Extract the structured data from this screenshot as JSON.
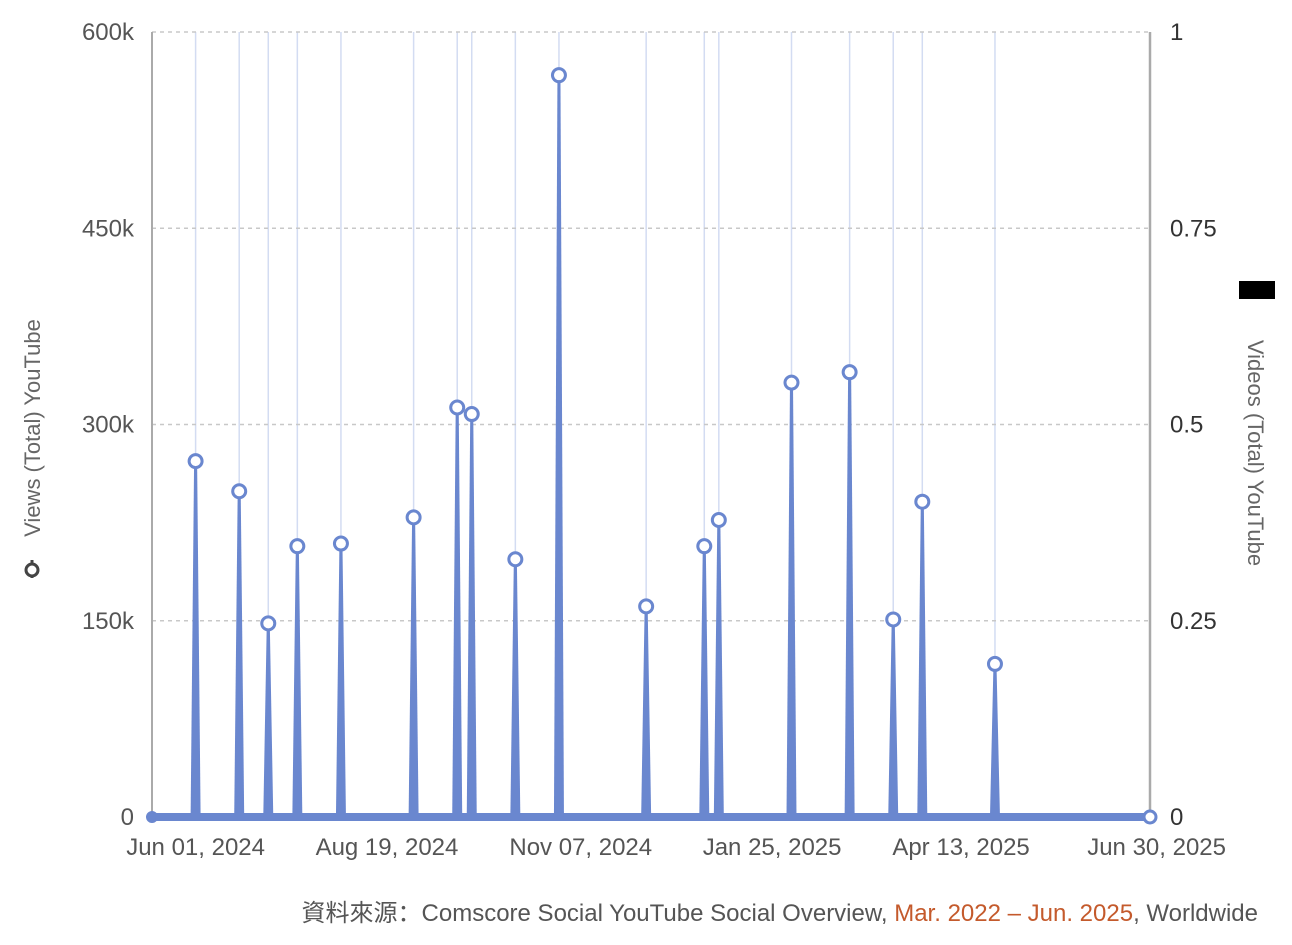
{
  "chart_data": {
    "type": "line",
    "subtype": "spike-line with circle markers, dual y-axis",
    "x": [
      "2024-05-14",
      "2024-06-01",
      "2024-06-13",
      "2024-06-25",
      "2024-07-13",
      "2024-08-12",
      "2024-08-30",
      "2024-09-05",
      "2024-09-22",
      "2024-10-10",
      "2024-11-15",
      "2024-12-09",
      "2024-12-15",
      "2025-01-13",
      "2025-02-05",
      "2025-02-23",
      "2025-03-03",
      "2025-03-28",
      "2025-04-08",
      "2025-05-07",
      "2025-06-30"
    ],
    "x_tick_labels": [
      "Jun 01, 2024",
      "Aug 19, 2024",
      "Nov 07, 2024",
      "Jan 25, 2025",
      "Apr 13, 2025",
      "Jun 30, 2025"
    ],
    "x_tick_dates": [
      "2024-06-01",
      "2024-08-19",
      "2024-11-07",
      "2025-01-25",
      "2025-04-13",
      "2025-06-30"
    ],
    "x_range": [
      "2024-05-14",
      "2025-06-30"
    ],
    "series": [
      {
        "name": "Views (Total) YouTube",
        "axis": "left",
        "color": "#6a87cf",
        "points": [
          {
            "x": "2024-05-14",
            "y": 0
          },
          {
            "x": "2024-06-01",
            "y": 272000
          },
          {
            "x": "2024-06-19",
            "y": 249000
          },
          {
            "x": "2024-07-01",
            "y": 148000
          },
          {
            "x": "2024-07-13",
            "y": 207000
          },
          {
            "x": "2024-07-31",
            "y": 209000
          },
          {
            "x": "2024-08-30",
            "y": 229000
          },
          {
            "x": "2024-09-17",
            "y": 313000
          },
          {
            "x": "2024-09-23",
            "y": 308000
          },
          {
            "x": "2024-10-11",
            "y": 197000
          },
          {
            "x": "2024-10-29",
            "y": 567000
          },
          {
            "x": "2024-12-04",
            "y": 161000
          },
          {
            "x": "2024-12-28",
            "y": 207000
          },
          {
            "x": "2025-01-03",
            "y": 227000
          },
          {
            "x": "2025-02-02",
            "y": 332000
          },
          {
            "x": "2025-02-26",
            "y": 340000
          },
          {
            "x": "2025-03-16",
            "y": 151000
          },
          {
            "x": "2025-03-28",
            "y": 241000
          },
          {
            "x": "2025-04-27",
            "y": 117000
          },
          {
            "x": "2025-06-30",
            "y": 0
          }
        ]
      },
      {
        "name": "Videos (Total) YouTube",
        "axis": "right",
        "color": "#000000"
      }
    ],
    "y_left": {
      "title": "Views (Total) YouTube",
      "ticks": [
        "0",
        "150k",
        "300k",
        "450k",
        "600k"
      ],
      "range": [
        0,
        600000
      ]
    },
    "y_right": {
      "title": "Videos (Total) YouTube",
      "ticks": [
        "0",
        "0.25",
        "0.5",
        "0.75",
        "1"
      ],
      "range": [
        0,
        1
      ]
    },
    "grid": "dashed horizontal, vertical lines at spikes",
    "legend": "axis titles (left and right)"
  },
  "source": {
    "prefix": "資料來源：Comscore Social YouTube Social Overview, ",
    "range": "Mar. 2022 – Jun. 2025",
    "suffix": ", Worldwide"
  },
  "colors": {
    "line": "#6a87cf",
    "vgrid": "#d3dcf2",
    "hgrid": "#c8c8c8",
    "axis": "#aaaaaa",
    "source_highlight": "#c45a2c"
  }
}
